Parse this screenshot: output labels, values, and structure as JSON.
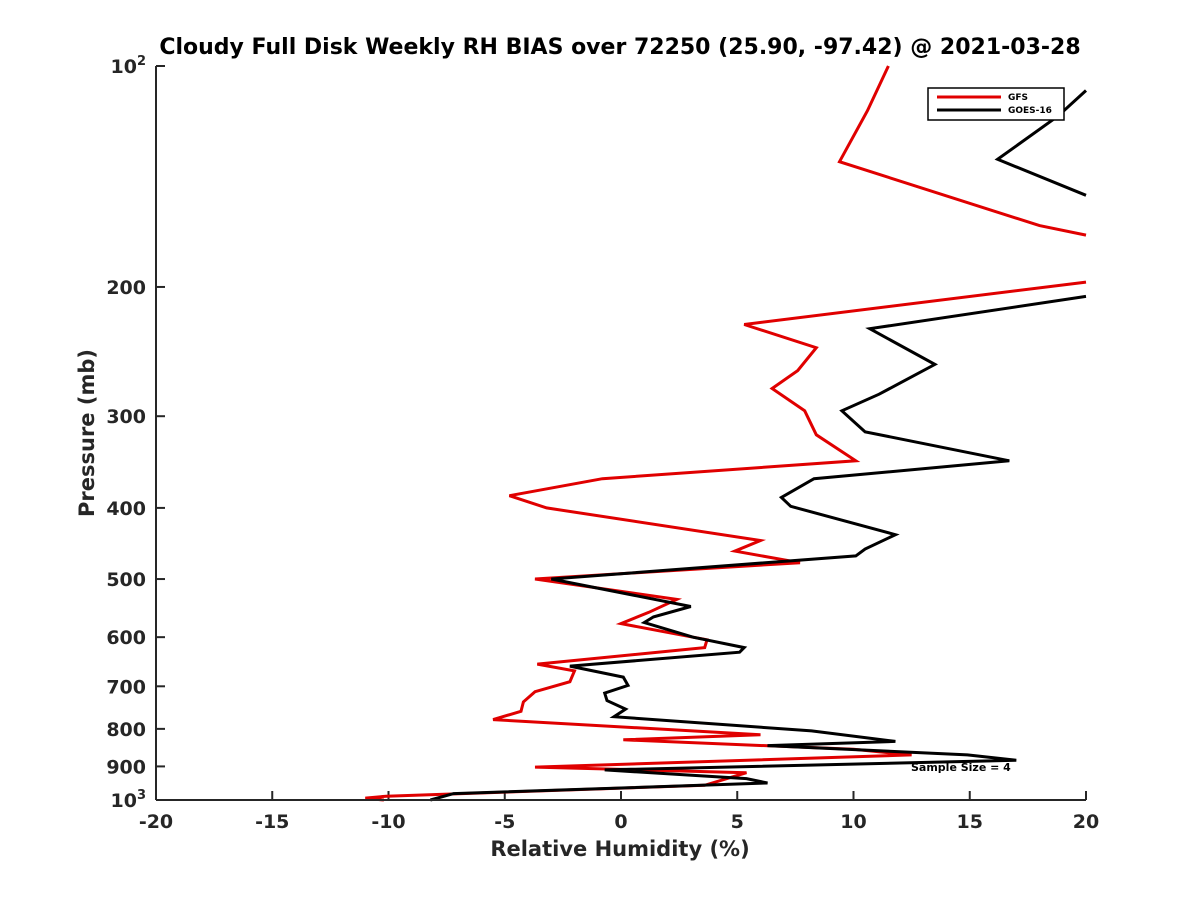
{
  "chart_data": {
    "type": "line",
    "title": "Cloudy Full Disk Weekly RH BIAS over 72250 (25.90, -97.42) @ 2021-03-28",
    "xlabel": "Relative Humidity (%)",
    "ylabel": "Pressure (mb)",
    "xlim": [
      -20,
      20
    ],
    "ylim": [
      100,
      1000
    ],
    "y_scale": "log",
    "y_reversed": true,
    "x_ticks": [
      "-20",
      "-15",
      "-10",
      "-5",
      "0",
      "5",
      "10",
      "15",
      "20"
    ],
    "y_ticks": [
      {
        "value": 100,
        "base": "10",
        "exp": "2"
      },
      {
        "value": 200,
        "base": "200",
        "exp": ""
      },
      {
        "value": 300,
        "base": "300",
        "exp": ""
      },
      {
        "value": 400,
        "base": "400",
        "exp": ""
      },
      {
        "value": 500,
        "base": "500",
        "exp": ""
      },
      {
        "value": 600,
        "base": "600",
        "exp": ""
      },
      {
        "value": 700,
        "base": "700",
        "exp": ""
      },
      {
        "value": 800,
        "base": "800",
        "exp": ""
      },
      {
        "value": 900,
        "base": "900",
        "exp": ""
      },
      {
        "value": 1000,
        "base": "10",
        "exp": "3"
      }
    ],
    "legend_position": "top-right",
    "annotation": "Sample Size = 4",
    "series": [
      {
        "name": "GFS",
        "color": "#e00000",
        "points": [
          [
            11.5,
            100
          ],
          [
            10.6,
            115
          ],
          [
            9.4,
            135
          ],
          [
            18.0,
            165
          ],
          [
            20.0,
            170
          ],
          [
            null,
            null
          ],
          [
            20.0,
            197
          ],
          [
            5.3,
            225
          ],
          [
            8.4,
            242
          ],
          [
            7.6,
            260
          ],
          [
            6.5,
            275
          ],
          [
            7.9,
            295
          ],
          [
            8.4,
            318
          ],
          [
            10.1,
            345
          ],
          [
            -0.8,
            365
          ],
          [
            -4.8,
            385
          ],
          [
            -3.2,
            400
          ],
          [
            6.0,
            443
          ],
          [
            4.9,
            458
          ],
          [
            7.7,
            475
          ],
          [
            -3.7,
            500
          ],
          [
            2.4,
            533
          ],
          [
            1.2,
            555
          ],
          [
            0.0,
            575
          ],
          [
            3.7,
            605
          ],
          [
            3.6,
            620
          ],
          [
            -3.6,
            653
          ],
          [
            -2.0,
            667
          ],
          [
            -2.2,
            690
          ],
          [
            -3.7,
            712
          ],
          [
            -4.2,
            735
          ],
          [
            -4.3,
            757
          ],
          [
            -5.5,
            777
          ],
          [
            6.0,
            815
          ],
          [
            0.1,
            828
          ],
          [
            10.0,
            853
          ],
          [
            12.5,
            868
          ],
          [
            -3.7,
            902
          ],
          [
            5.4,
            918
          ],
          [
            3.6,
            955
          ],
          [
            -10.1,
            988
          ],
          [
            -11.0,
            994
          ],
          [
            -10.2,
            1000
          ]
        ]
      },
      {
        "name": "GOES-16",
        "color": "#000000",
        "points": [
          [
            20.0,
            108
          ],
          [
            18.8,
            117
          ],
          [
            16.2,
            134
          ],
          [
            20.0,
            150
          ],
          [
            null,
            null
          ],
          [
            20.0,
            206
          ],
          [
            10.7,
            228
          ],
          [
            13.5,
            255
          ],
          [
            11.1,
            280
          ],
          [
            9.5,
            295
          ],
          [
            10.5,
            315
          ],
          [
            16.7,
            345
          ],
          [
            8.3,
            365
          ],
          [
            6.9,
            387
          ],
          [
            7.3,
            398
          ],
          [
            11.8,
            435
          ],
          [
            10.5,
            455
          ],
          [
            10.1,
            465
          ],
          [
            -3.0,
            500
          ],
          [
            3.0,
            545
          ],
          [
            1.4,
            563
          ],
          [
            1.0,
            573
          ],
          [
            3.1,
            600
          ],
          [
            5.3,
            620
          ],
          [
            5.1,
            629
          ],
          [
            -2.2,
            657
          ],
          [
            0.1,
            680
          ],
          [
            0.3,
            698
          ],
          [
            -0.7,
            715
          ],
          [
            -0.6,
            732
          ],
          [
            0.2,
            752
          ],
          [
            -0.3,
            770
          ],
          [
            8.2,
            805
          ],
          [
            11.8,
            832
          ],
          [
            6.3,
            843
          ],
          [
            14.9,
            868
          ],
          [
            17.0,
            883
          ],
          [
            -0.7,
            910
          ],
          [
            5.4,
            935
          ],
          [
            6.3,
            948
          ],
          [
            -7.2,
            980
          ],
          [
            -8.2,
            1000
          ]
        ]
      }
    ]
  }
}
